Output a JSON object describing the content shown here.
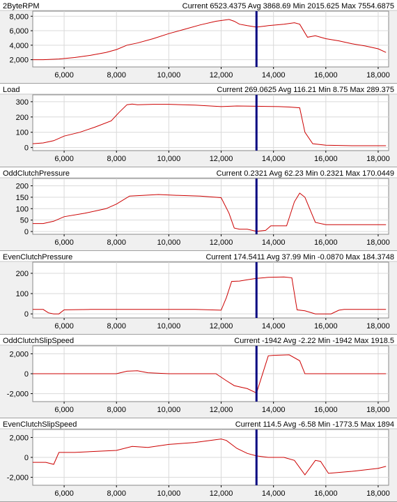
{
  "chart_data": [
    {
      "type": "line",
      "title": "2ByteRPM",
      "stats": "Current 6523.4375 Avg 3868.69 Min 2015.625 Max 7554.6875",
      "xlim": [
        4800,
        18400
      ],
      "ylim": [
        1000,
        8700
      ],
      "yticks": [
        2000,
        4000,
        6000,
        8000
      ],
      "ytick_labels": [
        "2,000",
        "4,000",
        "6,000",
        "8,000"
      ],
      "xticks": [
        6000,
        8000,
        10000,
        12000,
        14000,
        16000,
        18000
      ],
      "xtick_labels": [
        "6,000",
        "8,000",
        "10,000",
        "12,000",
        "14,000",
        "16,000",
        "18,000"
      ],
      "cursor_x": 13350,
      "grid": true,
      "color": "#cc0000",
      "x": [
        4800,
        5200,
        5800,
        6400,
        7000,
        7600,
        8000,
        8400,
        8800,
        9400,
        10000,
        10600,
        11200,
        11800,
        12300,
        12500,
        12700,
        13000,
        13350,
        13800,
        14400,
        14800,
        15000,
        15300,
        15600,
        16000,
        16500,
        17000,
        17500,
        18000,
        18300
      ],
      "values": [
        2000,
        2000,
        2100,
        2300,
        2600,
        3000,
        3400,
        4000,
        4300,
        4900,
        5600,
        6200,
        6800,
        7300,
        7550,
        7300,
        6900,
        6700,
        6500,
        6700,
        6900,
        7100,
        6900,
        5100,
        5300,
        4900,
        4600,
        4200,
        3900,
        3500,
        3000
      ]
    },
    {
      "type": "line",
      "title": "Load",
      "stats": "Current 269.0625 Avg 116.21 Min 8.75 Max 289.375",
      "xlim": [
        4800,
        18400
      ],
      "ylim": [
        -20,
        345
      ],
      "yticks": [
        0,
        100,
        200,
        300
      ],
      "ytick_labels": [
        "0",
        "100",
        "200",
        "300"
      ],
      "xticks": [
        6000,
        8000,
        10000,
        12000,
        14000,
        16000,
        18000
      ],
      "xtick_labels": [
        "6,000",
        "8,000",
        "10,000",
        "12,000",
        "14,000",
        "16,000",
        "18,000"
      ],
      "cursor_x": 13350,
      "grid": true,
      "color": "#cc0000",
      "x": [
        4800,
        5200,
        5600,
        6000,
        6600,
        7200,
        7800,
        8100,
        8400,
        8600,
        8800,
        9400,
        10000,
        11000,
        12000,
        12600,
        13350,
        14200,
        14600,
        15000,
        15200,
        15500,
        16000,
        17000,
        18000,
        18300
      ],
      "values": [
        25,
        30,
        45,
        75,
        100,
        135,
        175,
        230,
        280,
        285,
        280,
        283,
        283,
        278,
        268,
        272,
        270,
        268,
        265,
        260,
        100,
        25,
        15,
        12,
        12,
        12
      ]
    },
    {
      "type": "line",
      "title": "OddClutchPressure",
      "stats": "Current 0.2321 Avg 62.23 Min 0.2321 Max 170.0449",
      "xlim": [
        4800,
        18400
      ],
      "ylim": [
        -12,
        232
      ],
      "yticks": [
        0,
        50,
        100,
        150,
        200
      ],
      "ytick_labels": [
        "0",
        "50",
        "100",
        "150",
        "200"
      ],
      "xticks": [
        6000,
        8000,
        10000,
        12000,
        14000,
        16000,
        18000
      ],
      "xtick_labels": [
        "6,000",
        "8,000",
        "10,000",
        "12,000",
        "14,000",
        "16,000",
        "18,000"
      ],
      "cursor_x": 13350,
      "grid": true,
      "color": "#cc0000",
      "x": [
        4800,
        5200,
        5600,
        6000,
        6800,
        7600,
        8000,
        8500,
        9000,
        9600,
        10400,
        11200,
        12000,
        12300,
        12500,
        12700,
        13000,
        13350,
        13700,
        13900,
        14500,
        14800,
        15000,
        15200,
        15600,
        16000,
        17000,
        18000,
        18300
      ],
      "values": [
        35,
        35,
        45,
        65,
        80,
        100,
        120,
        155,
        158,
        162,
        158,
        155,
        148,
        80,
        15,
        10,
        10,
        1,
        5,
        25,
        25,
        130,
        168,
        150,
        40,
        30,
        30,
        30,
        30
      ]
    },
    {
      "type": "line",
      "title": "EvenClutchPressure",
      "stats": "Current 174.5411 Avg 37.99 Min -0.0870 Max 184.3748",
      "xlim": [
        4800,
        18400
      ],
      "ylim": [
        -20,
        255
      ],
      "yticks": [
        0,
        100,
        200
      ],
      "ytick_labels": [
        "0",
        "100",
        "200"
      ],
      "xticks": [
        6000,
        8000,
        10000,
        12000,
        14000,
        16000,
        18000
      ],
      "xtick_labels": [
        "6,000",
        "8,000",
        "10,000",
        "12,000",
        "14,000",
        "16,000",
        "18,000"
      ],
      "cursor_x": 13350,
      "grid": true,
      "color": "#cc0000",
      "x": [
        4800,
        5200,
        5400,
        5600,
        5800,
        6000,
        7000,
        8000,
        9000,
        10000,
        11000,
        12000,
        12200,
        12400,
        12700,
        13000,
        13350,
        13800,
        14400,
        14700,
        14900,
        15200,
        15600,
        16200,
        16500,
        16700,
        17200,
        18300
      ],
      "values": [
        22,
        22,
        5,
        0,
        0,
        20,
        22,
        22,
        22,
        22,
        22,
        18,
        80,
        160,
        162,
        168,
        175,
        180,
        182,
        178,
        20,
        15,
        0,
        0,
        18,
        22,
        22,
        22
      ]
    },
    {
      "type": "line",
      "title": "OddClutchSlipSpeed",
      "stats": "Current -1942 Avg -2.22 Min -1942 Max 1918.5",
      "xlim": [
        4800,
        18400
      ],
      "ylim": [
        -2800,
        2800
      ],
      "yticks": [
        -2000,
        0,
        2000
      ],
      "ytick_labels": [
        "-2,000",
        "0",
        "2,000"
      ],
      "xticks": [
        6000,
        8000,
        10000,
        12000,
        14000,
        16000,
        18000
      ],
      "xtick_labels": [
        "6,000",
        "8,000",
        "10,000",
        "12,000",
        "14,000",
        "16,000",
        "18,000"
      ],
      "cursor_x": 13350,
      "grid": true,
      "color": "#cc0000",
      "x": [
        4800,
        6000,
        7000,
        8000,
        8400,
        8800,
        9200,
        10000,
        11000,
        11800,
        12200,
        12500,
        13000,
        13350,
        13800,
        14000,
        14600,
        15000,
        15200,
        15600,
        16500,
        17500,
        18300
      ],
      "values": [
        0,
        0,
        0,
        0,
        250,
        300,
        100,
        0,
        0,
        0,
        -700,
        -1200,
        -1500,
        -1942,
        1800,
        1850,
        1900,
        1300,
        0,
        0,
        0,
        0,
        0
      ]
    },
    {
      "type": "line",
      "title": "EvenClutchSlipSpeed",
      "stats": "Current 114.5 Avg -6.58 Min -1773.5 Max 1894",
      "xlim": [
        4800,
        18400
      ],
      "ylim": [
        -2800,
        2800
      ],
      "yticks": [
        -2000,
        0,
        2000
      ],
      "ytick_labels": [
        "-2,000",
        "0",
        "2,000"
      ],
      "xticks": [
        6000,
        8000,
        10000,
        12000,
        14000,
        16000,
        18000
      ],
      "xtick_labels": [
        "6,000",
        "8,000",
        "10,000",
        "12,000",
        "14,000",
        "16,000",
        "18,000"
      ],
      "cursor_x": 13350,
      "grid": true,
      "color": "#cc0000",
      "x": [
        4800,
        5300,
        5600,
        5800,
        6400,
        7200,
        8000,
        8600,
        9200,
        10000,
        11000,
        12000,
        12200,
        12600,
        13000,
        13350,
        13800,
        14400,
        14800,
        15200,
        15600,
        15800,
        16100,
        17000,
        18000,
        18300
      ],
      "values": [
        -500,
        -500,
        -700,
        500,
        500,
        600,
        700,
        1100,
        1000,
        1300,
        1500,
        1850,
        1700,
        900,
        400,
        150,
        0,
        0,
        -300,
        -1750,
        -300,
        -400,
        -1600,
        -1400,
        -1100,
        -900
      ]
    }
  ]
}
